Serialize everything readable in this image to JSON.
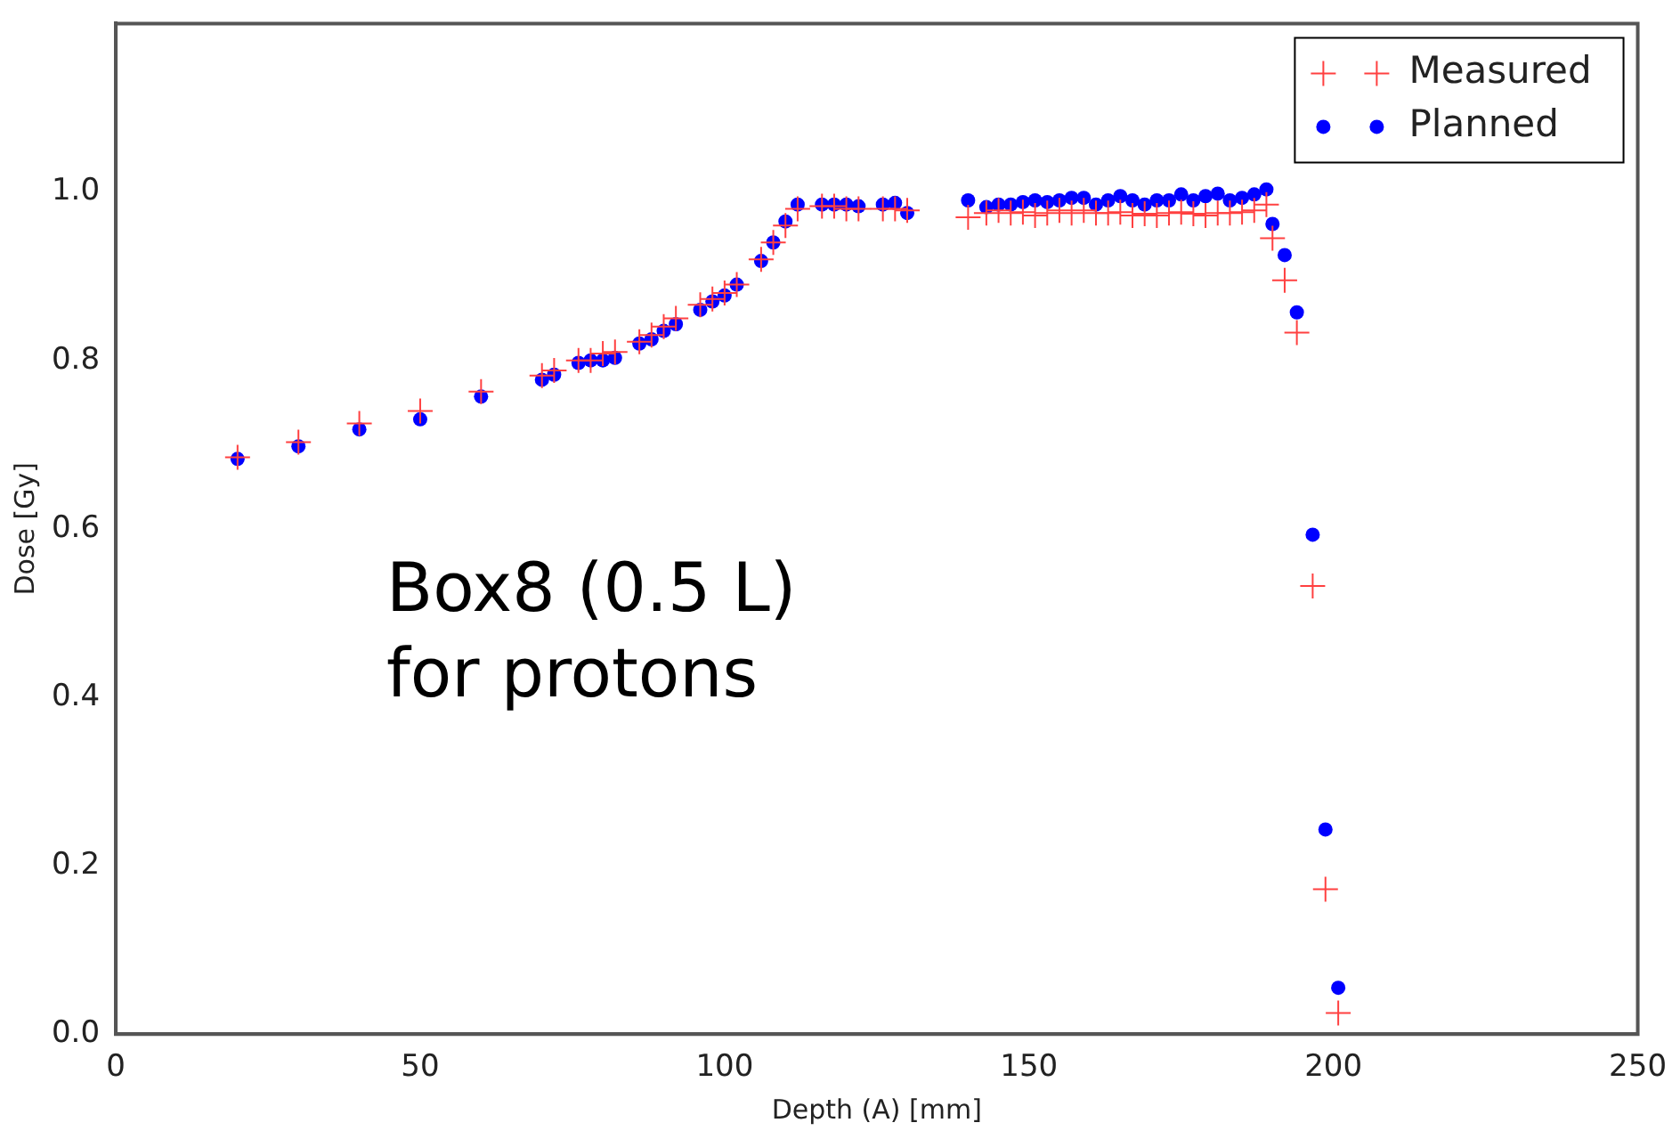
{
  "chart_data": {
    "type": "scatter",
    "xlabel": "Depth (A) [mm]",
    "ylabel": "Dose [Gy]",
    "xlim": [
      0,
      250
    ],
    "xticks": [
      0,
      50,
      100,
      150,
      200,
      250
    ],
    "ylim": [
      0,
      1.2
    ],
    "yticks": [
      {
        "value": 0,
        "label": "0.0"
      },
      0.2,
      0.4,
      0.6,
      0.8,
      {
        "value": 1,
        "label": "1.0"
      }
    ],
    "grid": false,
    "legend": "top right",
    "annotations": [
      "Box8 (0.5 L)\nfor protons"
    ],
    "series": [
      {
        "name": "Measured",
        "color": "#ff4040",
        "marker": "cross",
        "x": [
          20,
          30,
          40,
          50,
          60,
          70,
          72,
          76,
          78,
          80,
          82,
          86,
          88,
          90,
          92,
          96,
          98,
          100,
          102,
          106,
          108,
          110,
          112,
          116,
          118,
          120,
          122,
          126,
          128,
          130,
          140,
          143,
          145,
          147,
          149,
          151,
          153,
          155,
          157,
          159,
          161,
          163,
          165,
          167,
          169,
          171,
          173,
          175,
          177,
          179,
          181,
          183,
          185,
          187,
          189,
          190,
          192,
          194,
          196.6,
          198.7,
          200.8
        ],
        "values": [
          0.685,
          0.703,
          0.725,
          0.74,
          0.763,
          0.782,
          0.788,
          0.8,
          0.8,
          0.808,
          0.81,
          0.822,
          0.83,
          0.84,
          0.85,
          0.866,
          0.873,
          0.88,
          0.89,
          0.92,
          0.94,
          0.96,
          0.98,
          0.983,
          0.983,
          0.98,
          0.98,
          0.98,
          0.98,
          0.978,
          0.97,
          0.975,
          0.978,
          0.975,
          0.976,
          0.972,
          0.975,
          0.978,
          0.975,
          0.978,
          0.975,
          0.975,
          0.976,
          0.972,
          0.974,
          0.972,
          0.975,
          0.976,
          0.974,
          0.972,
          0.975,
          0.975,
          0.976,
          0.978,
          0.985,
          0.945,
          0.895,
          0.833,
          0.532,
          0.172,
          0.025
        ]
      },
      {
        "name": "Planned",
        "color": "#0000ff",
        "marker": "circle",
        "x": [
          20,
          30,
          40,
          50,
          60,
          70,
          72,
          76,
          78,
          80,
          82,
          86,
          88,
          90,
          92,
          96,
          98,
          100,
          102,
          106,
          108,
          110,
          112,
          116,
          118,
          120,
          122,
          126,
          128,
          130,
          140,
          143,
          145,
          147,
          149,
          151,
          153,
          155,
          157,
          159,
          161,
          163,
          165,
          167,
          169,
          171,
          173,
          175,
          177,
          179,
          181,
          183,
          185,
          187,
          189,
          190,
          192,
          194,
          196.6,
          198.7,
          200.8
        ],
        "values": [
          0.683,
          0.698,
          0.718,
          0.73,
          0.757,
          0.777,
          0.783,
          0.797,
          0.8,
          0.8,
          0.803,
          0.82,
          0.825,
          0.835,
          0.843,
          0.86,
          0.87,
          0.877,
          0.89,
          0.918,
          0.94,
          0.965,
          0.985,
          0.985,
          0.985,
          0.985,
          0.983,
          0.985,
          0.987,
          0.975,
          0.99,
          0.982,
          0.985,
          0.985,
          0.988,
          0.99,
          0.988,
          0.99,
          0.993,
          0.993,
          0.985,
          0.99,
          0.995,
          0.99,
          0.985,
          0.99,
          0.99,
          0.997,
          0.99,
          0.995,
          0.998,
          0.99,
          0.993,
          0.997,
          1.003,
          0.962,
          0.925,
          0.857,
          0.593,
          0.243,
          0.055
        ]
      }
    ]
  }
}
